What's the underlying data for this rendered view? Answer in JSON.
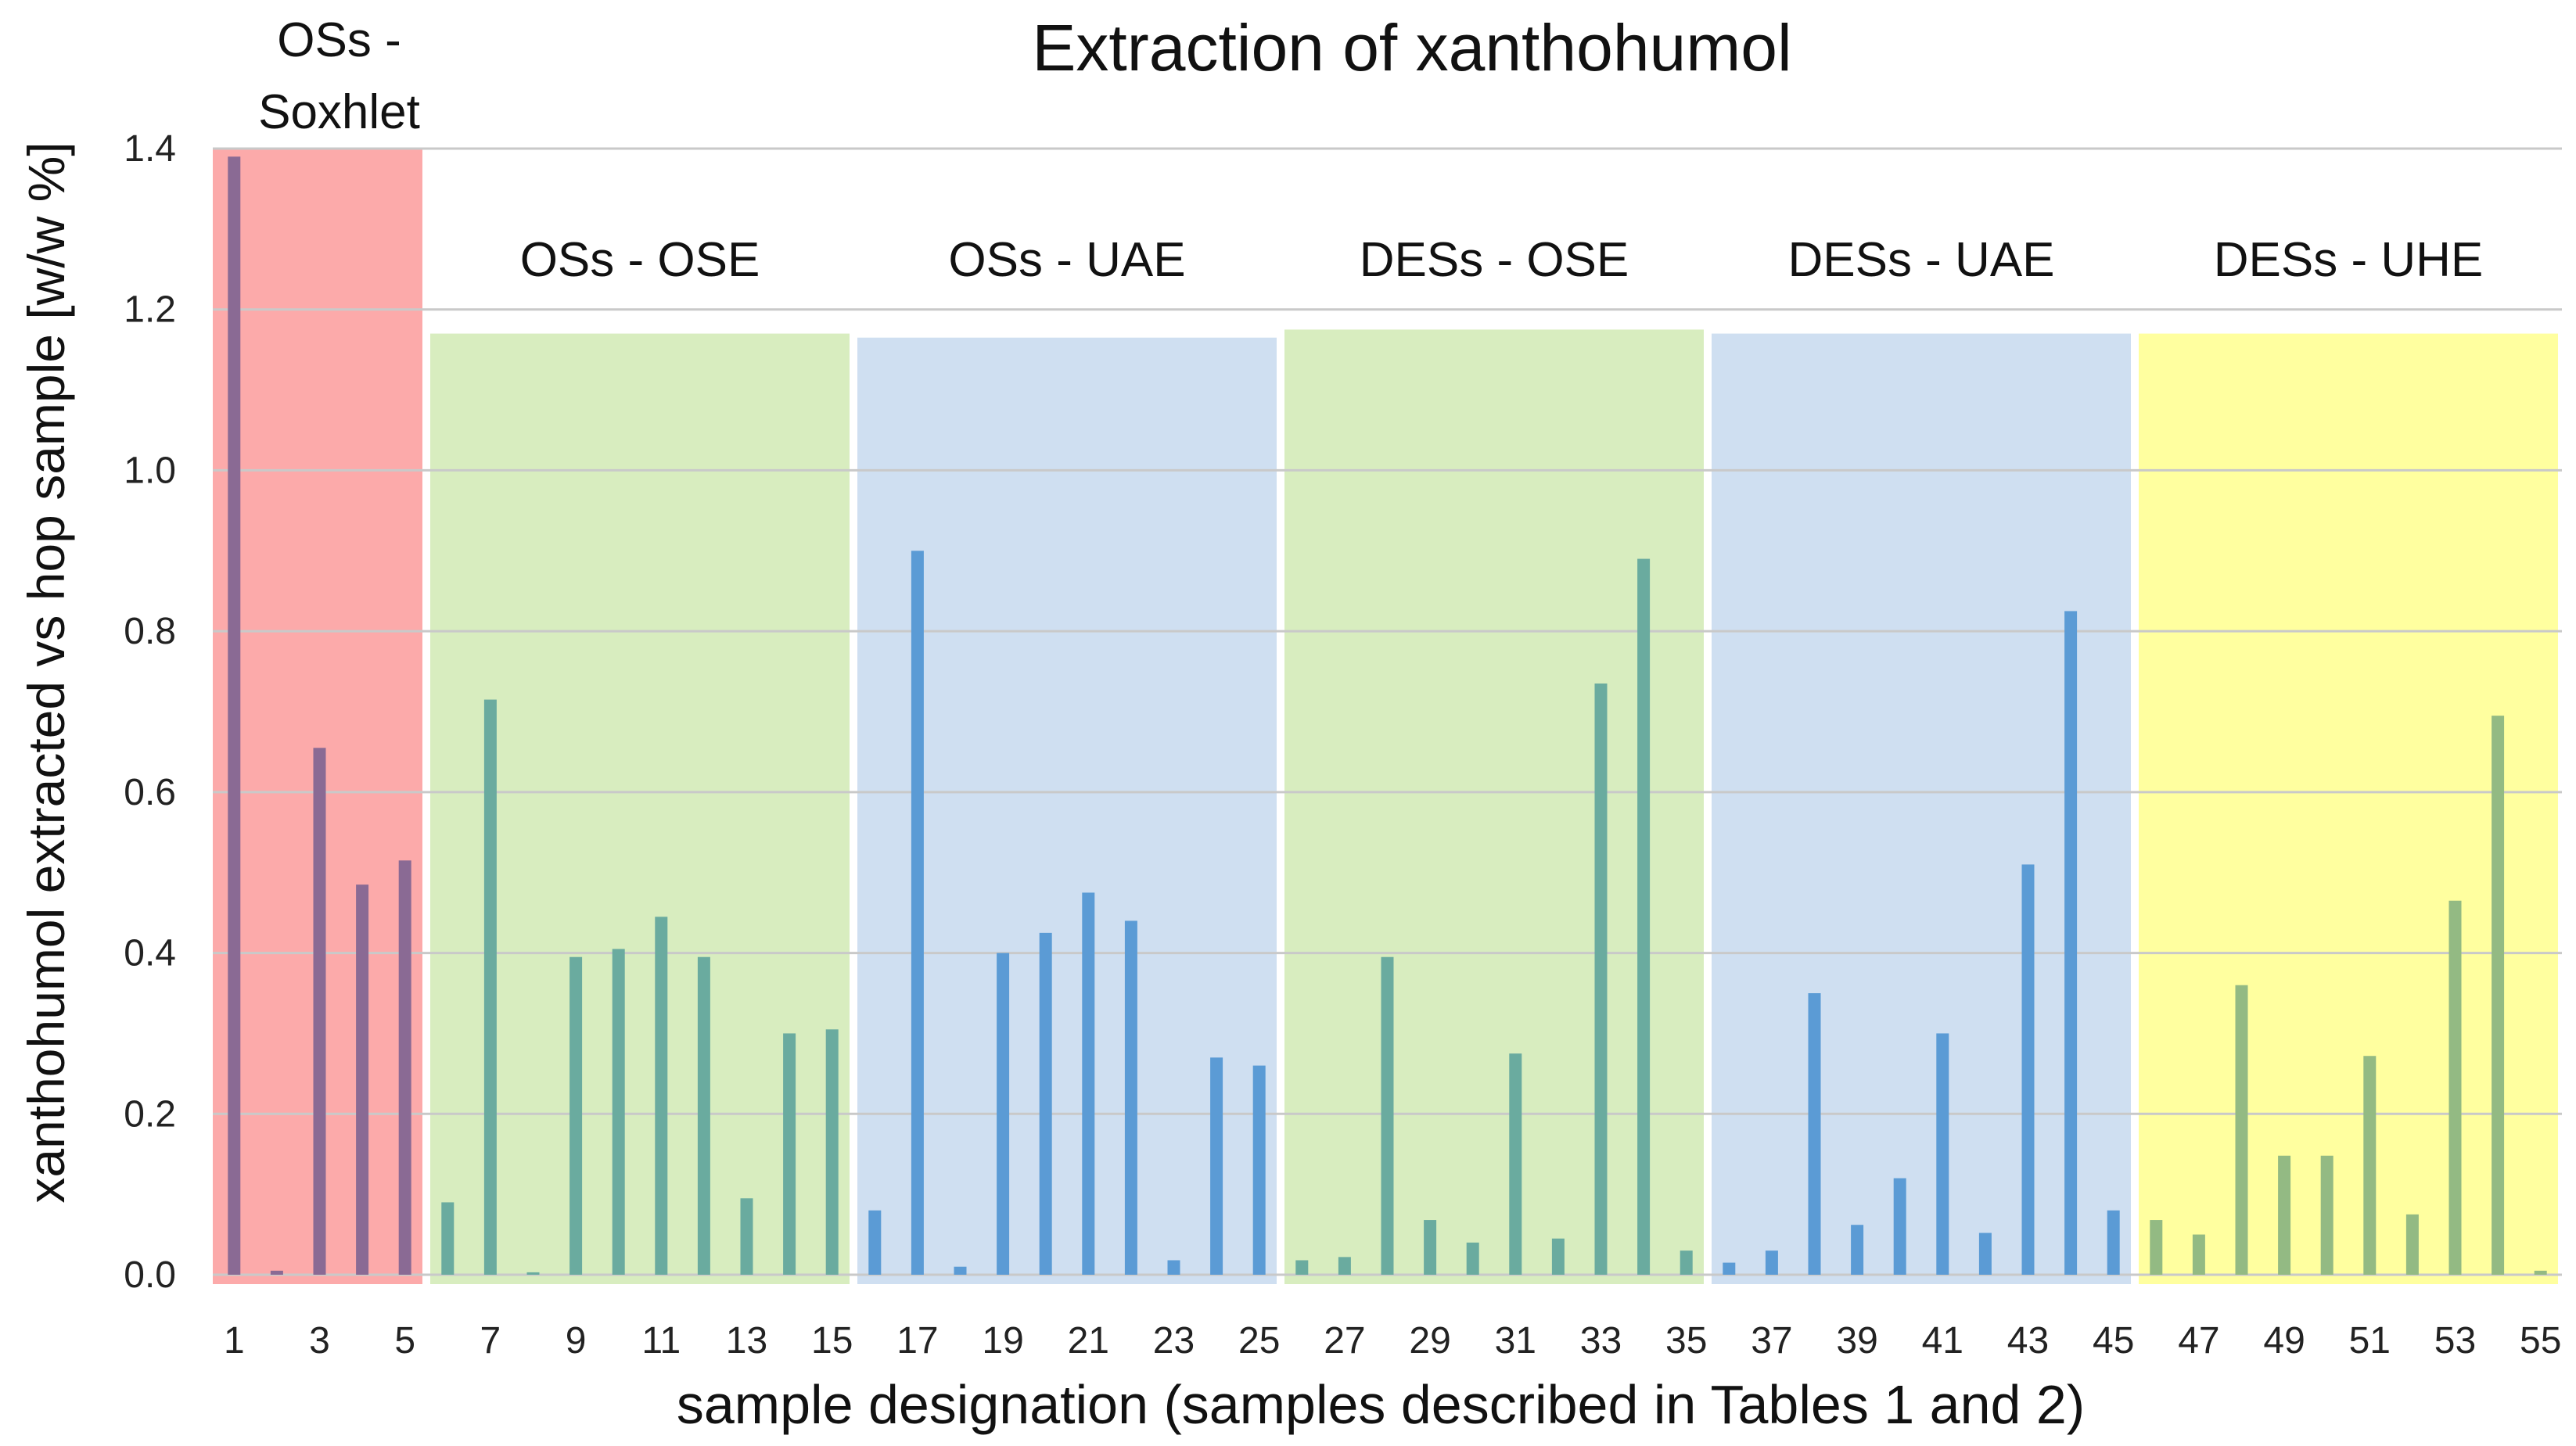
{
  "chart_data": {
    "type": "bar",
    "title": "Extraction of xanthohumol",
    "xlabel": "sample designation (samples described in Tables 1 and 2)",
    "ylabel": "xanthohumol extracted vs hop sample [w/w %]",
    "ylim": [
      0,
      1.4
    ],
    "yticks": [
      "0.0",
      "0.2",
      "0.4",
      "0.6",
      "0.8",
      "1.0",
      "1.2",
      "1.4"
    ],
    "grid": true,
    "x": [
      1,
      2,
      3,
      4,
      5,
      6,
      7,
      8,
      9,
      10,
      11,
      12,
      13,
      14,
      15,
      16,
      17,
      18,
      19,
      20,
      21,
      22,
      23,
      24,
      25,
      26,
      27,
      28,
      29,
      30,
      31,
      32,
      33,
      34,
      35,
      36,
      37,
      38,
      39,
      40,
      41,
      42,
      43,
      44,
      45,
      46,
      47,
      48,
      49,
      50,
      51,
      52,
      53,
      54,
      55
    ],
    "xticks": [
      "1",
      "3",
      "5",
      "7",
      "9",
      "11",
      "13",
      "15",
      "17",
      "19",
      "21",
      "23",
      "25",
      "27",
      "29",
      "31",
      "33",
      "35",
      "37",
      "39",
      "41",
      "43",
      "45",
      "47",
      "49",
      "51",
      "53",
      "55"
    ],
    "values": [
      1.39,
      0.005,
      0.655,
      0.485,
      0.515,
      0.09,
      0.715,
      0.003,
      0.395,
      0.405,
      0.445,
      0.395,
      0.095,
      0.3,
      0.305,
      0.08,
      0.9,
      0.01,
      0.4,
      0.425,
      0.475,
      0.44,
      0.018,
      0.27,
      0.26,
      0.018,
      0.022,
      0.395,
      0.068,
      0.04,
      0.275,
      0.045,
      0.735,
      0.89,
      0.03,
      0.015,
      0.03,
      0.35,
      0.062,
      0.12,
      0.3,
      0.052,
      0.51,
      0.825,
      0.08,
      0.068,
      0.05,
      0.36,
      0.148,
      0.148,
      0.272,
      0.075,
      0.465,
      0.695,
      0.005
    ],
    "groups": [
      {
        "label": [
          "OSs -",
          "Soxhlet"
        ],
        "start": 1,
        "end": 5,
        "band_top": 1.4,
        "bg": "#fcaaaa",
        "bar": "#8a6a94"
      },
      {
        "label": [
          "OSs - OSE"
        ],
        "start": 6,
        "end": 15,
        "band_top": 1.17,
        "bg": "#d8edbf",
        "bar": "#6aab9f"
      },
      {
        "label": [
          "OSs - UAE"
        ],
        "start": 16,
        "end": 25,
        "band_top": 1.165,
        "bg": "#cfdff1",
        "bar": "#5b9bd5"
      },
      {
        "label": [
          "DESs - OSE"
        ],
        "start": 26,
        "end": 35,
        "band_top": 1.175,
        "bg": "#d8edbf",
        "bar": "#6aab9f"
      },
      {
        "label": [
          "DESs - UAE"
        ],
        "start": 36,
        "end": 45,
        "band_top": 1.17,
        "bg": "#cfdff1",
        "bar": "#5b9bd5"
      },
      {
        "label": [
          "DESs - UHE"
        ],
        "start": 46,
        "end": 55,
        "band_top": 1.17,
        "bg": "#ffff9f",
        "bar": "#93ba83"
      }
    ]
  }
}
